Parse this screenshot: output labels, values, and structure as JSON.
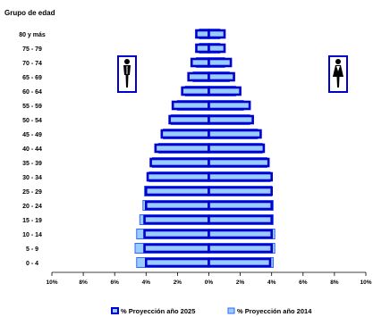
{
  "chart_data": {
    "type": "bar",
    "orientation": "horizontal",
    "layout": "population-pyramid",
    "ylabel": "Grupo de edad",
    "categories": [
      "80 y más",
      "75 - 79",
      "70 - 74",
      "65 - 69",
      "60 - 64",
      "55 - 59",
      "50 - 54",
      "45 - 49",
      "40 - 44",
      "35 - 39",
      "30 - 34",
      "25 - 29",
      "20 - 24",
      "15 - 19",
      "10 - 14",
      "5 - 9",
      "0 - 4"
    ],
    "xlim": [
      -10,
      10
    ],
    "xticks": [
      -10,
      -8,
      -6,
      -4,
      -2,
      0,
      2,
      4,
      6,
      8,
      10
    ],
    "xtick_labels": [
      "10%",
      "8%",
      "6%",
      "4%",
      "2%",
      "0%",
      "2%",
      "4%",
      "6%",
      "8%",
      "10%"
    ],
    "series": [
      {
        "name": "% Proyección año 2025",
        "color": "#0000cc",
        "fill": "#99ccff",
        "male": [
          0.8,
          0.8,
          1.1,
          1.3,
          1.7,
          2.3,
          2.5,
          3.0,
          3.4,
          3.7,
          3.9,
          4.0,
          4.0,
          4.1,
          4.1,
          4.1,
          4.0
        ],
        "female": [
          1.0,
          1.0,
          1.4,
          1.6,
          2.0,
          2.6,
          2.8,
          3.3,
          3.5,
          3.8,
          4.0,
          4.0,
          4.0,
          4.0,
          4.0,
          4.0,
          3.9
        ]
      },
      {
        "name": "% Proyección año 2014",
        "color": "#3366ff",
        "fill": "#99ccff",
        "male": [
          0.6,
          0.6,
          0.8,
          1.0,
          1.5,
          2.0,
          2.4,
          2.9,
          3.2,
          3.6,
          3.8,
          4.1,
          4.2,
          4.4,
          4.6,
          4.7,
          4.6
        ],
        "female": [
          0.7,
          0.7,
          1.0,
          1.3,
          1.7,
          2.2,
          2.6,
          3.1,
          3.4,
          3.7,
          3.9,
          4.0,
          4.1,
          4.1,
          4.2,
          4.2,
          4.1
        ]
      }
    ],
    "icons": {
      "male": "male-figure-icon",
      "female": "female-figure-icon"
    },
    "legend_position": "bottom",
    "grid": false
  }
}
